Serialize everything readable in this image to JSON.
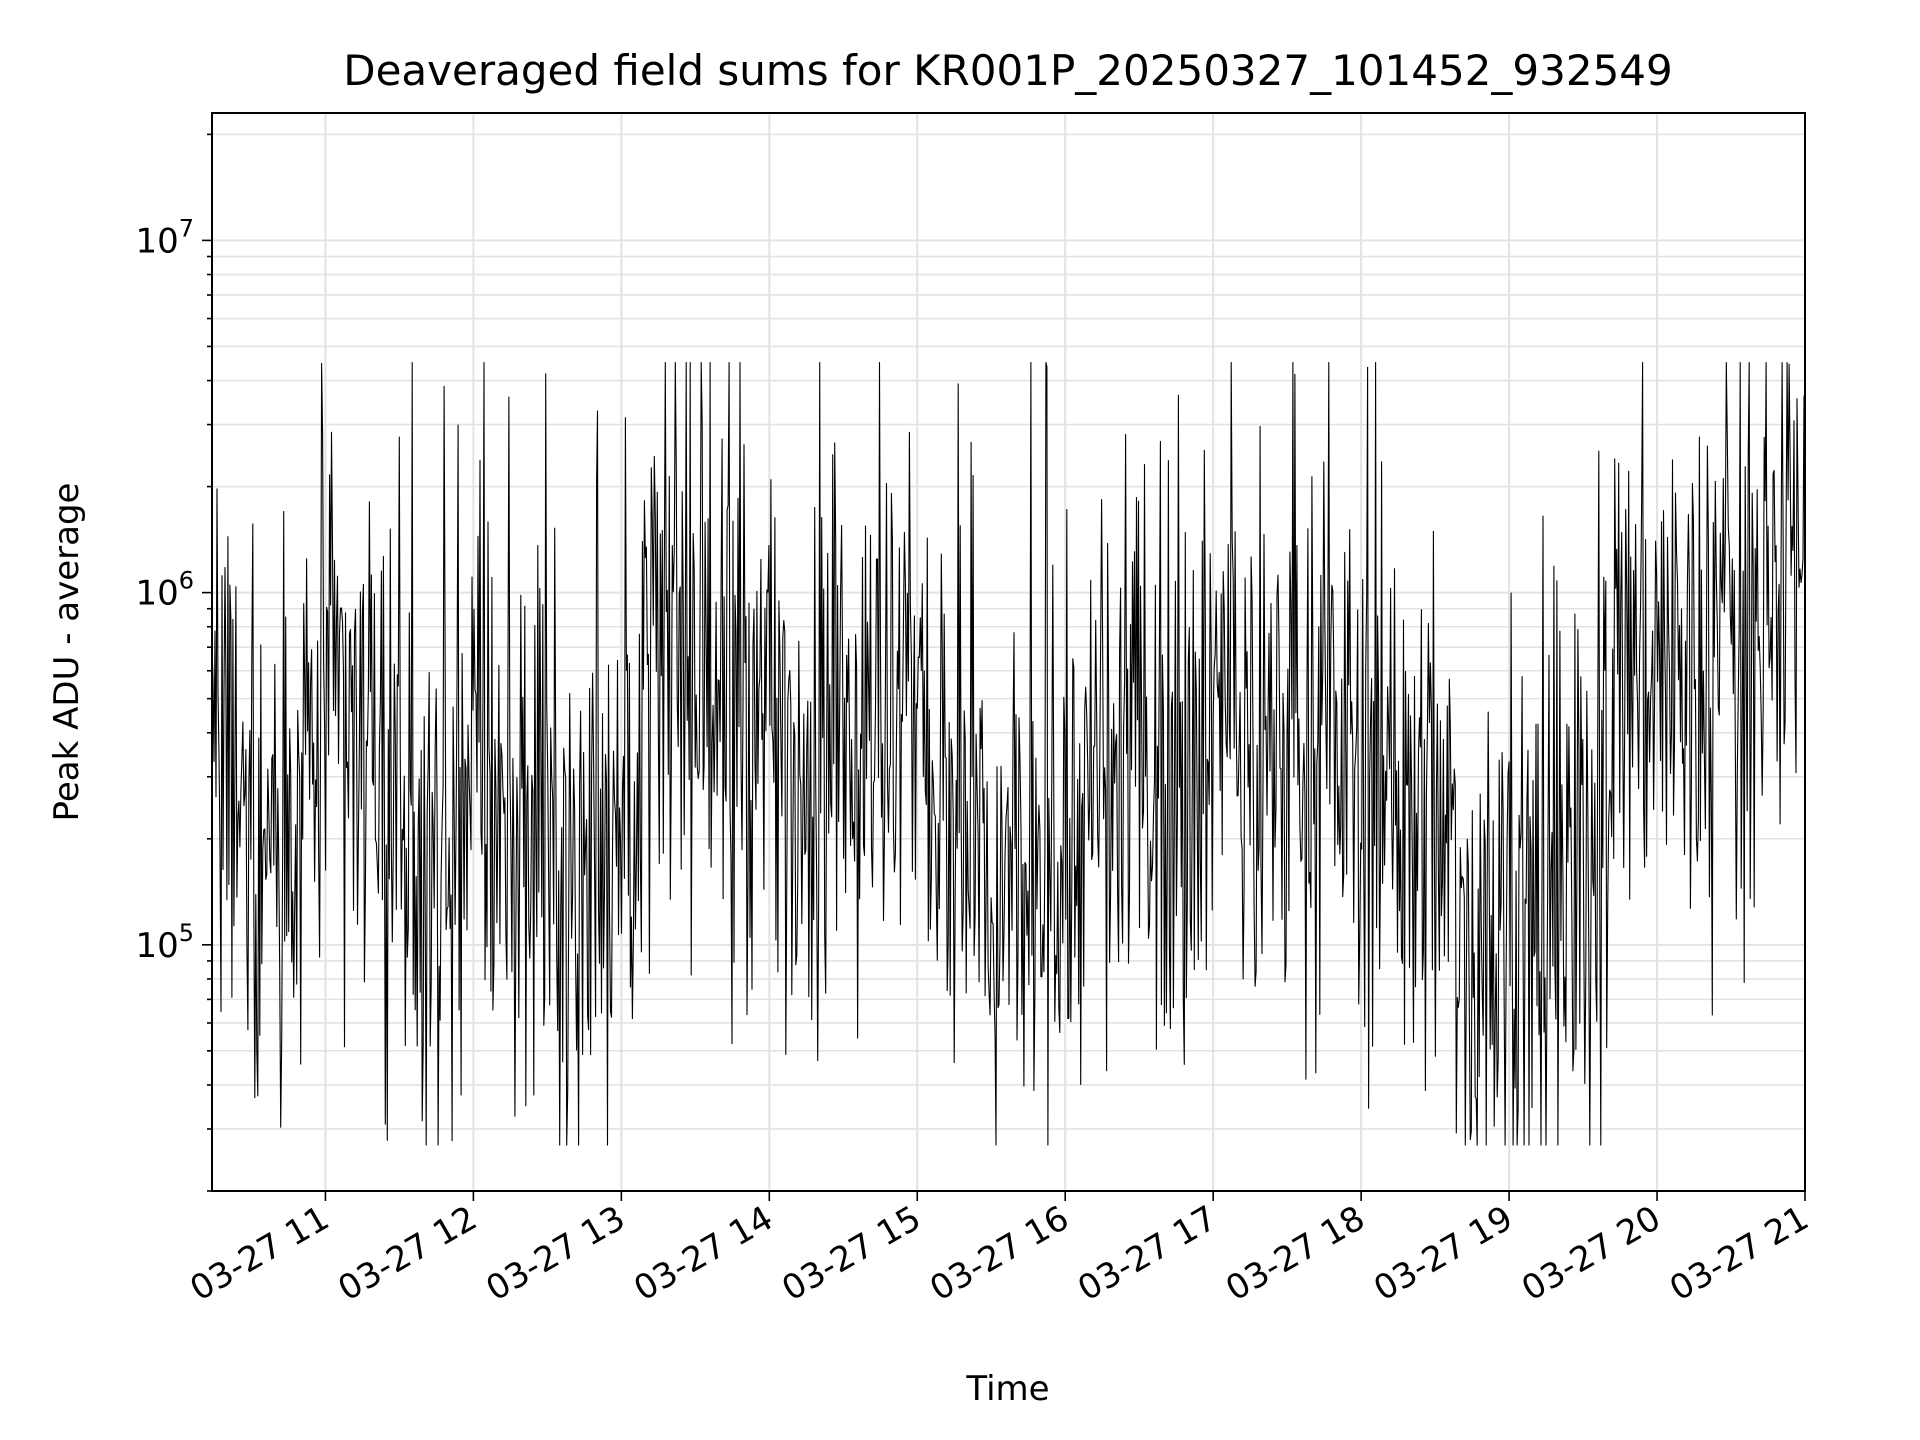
{
  "chart_data": {
    "type": "line",
    "title": "Deaveraged field sums for KR001P_20250327_101452_932549",
    "xlabel": "Time",
    "ylabel": "Peak ADU - average",
    "yscale": "log",
    "ylim": [
      20000,
      23000000
    ],
    "xlim": [
      "2025-03-27 10:14",
      "2025-03-27 21:00"
    ],
    "grid": true,
    "line_color": "#000000",
    "x_tick_labels": [
      "03-27 11",
      "03-27 12",
      "03-27 13",
      "03-27 14",
      "03-27 15",
      "03-27 16",
      "03-27 17",
      "03-27 18",
      "03-27 19",
      "03-27 20",
      "03-27 21"
    ],
    "y_ticks": [
      {
        "base": "10",
        "exp": "5",
        "value": 100000
      },
      {
        "base": "10",
        "exp": "6",
        "value": 1000000
      },
      {
        "base": "10",
        "exp": "7",
        "value": 10000000
      }
    ],
    "series": [
      {
        "x": [
          "2025-03-27 10:14",
          "2025-03-27 10:30",
          "2025-03-27 10:45",
          "2025-03-27 11:00",
          "2025-03-27 11:15",
          "2025-03-27 11:30",
          "2025-03-27 11:45",
          "2025-03-27 12:00",
          "2025-03-27 12:15",
          "2025-03-27 12:30",
          "2025-03-27 12:45",
          "2025-03-27 13:00",
          "2025-03-27 13:15",
          "2025-03-27 13:30",
          "2025-03-27 13:45",
          "2025-03-27 14:00",
          "2025-03-27 14:15",
          "2025-03-27 14:30",
          "2025-03-27 14:45",
          "2025-03-27 15:00",
          "2025-03-27 15:15",
          "2025-03-27 15:30",
          "2025-03-27 15:45",
          "2025-03-27 16:00",
          "2025-03-27 16:15",
          "2025-03-27 16:30",
          "2025-03-27 16:45",
          "2025-03-27 17:00",
          "2025-03-27 17:15",
          "2025-03-27 17:30",
          "2025-03-27 17:45",
          "2025-03-27 18:00",
          "2025-03-27 18:15",
          "2025-03-27 18:30",
          "2025-03-27 18:45",
          "2025-03-27 19:00",
          "2025-03-27 19:15",
          "2025-03-27 19:30",
          "2025-03-27 19:45",
          "2025-03-27 20:00",
          "2025-03-27 20:15",
          "2025-03-27 20:30",
          "2025-03-27 20:45",
          "2025-03-27 21:00"
        ],
        "y": [
          300000,
          250000,
          200000,
          500000,
          400000,
          150000,
          130000,
          350000,
          220000,
          200000,
          170000,
          250000,
          700000,
          600000,
          450000,
          350000,
          320000,
          450000,
          400000,
          500000,
          160000,
          150000,
          130000,
          200000,
          250000,
          350000,
          300000,
          450000,
          380000,
          350000,
          420000,
          320000,
          250000,
          200000,
          100000,
          120000,
          150000,
          110000,
          600000,
          700000,
          500000,
          700000,
          900000,
          1600000
        ]
      }
    ]
  }
}
